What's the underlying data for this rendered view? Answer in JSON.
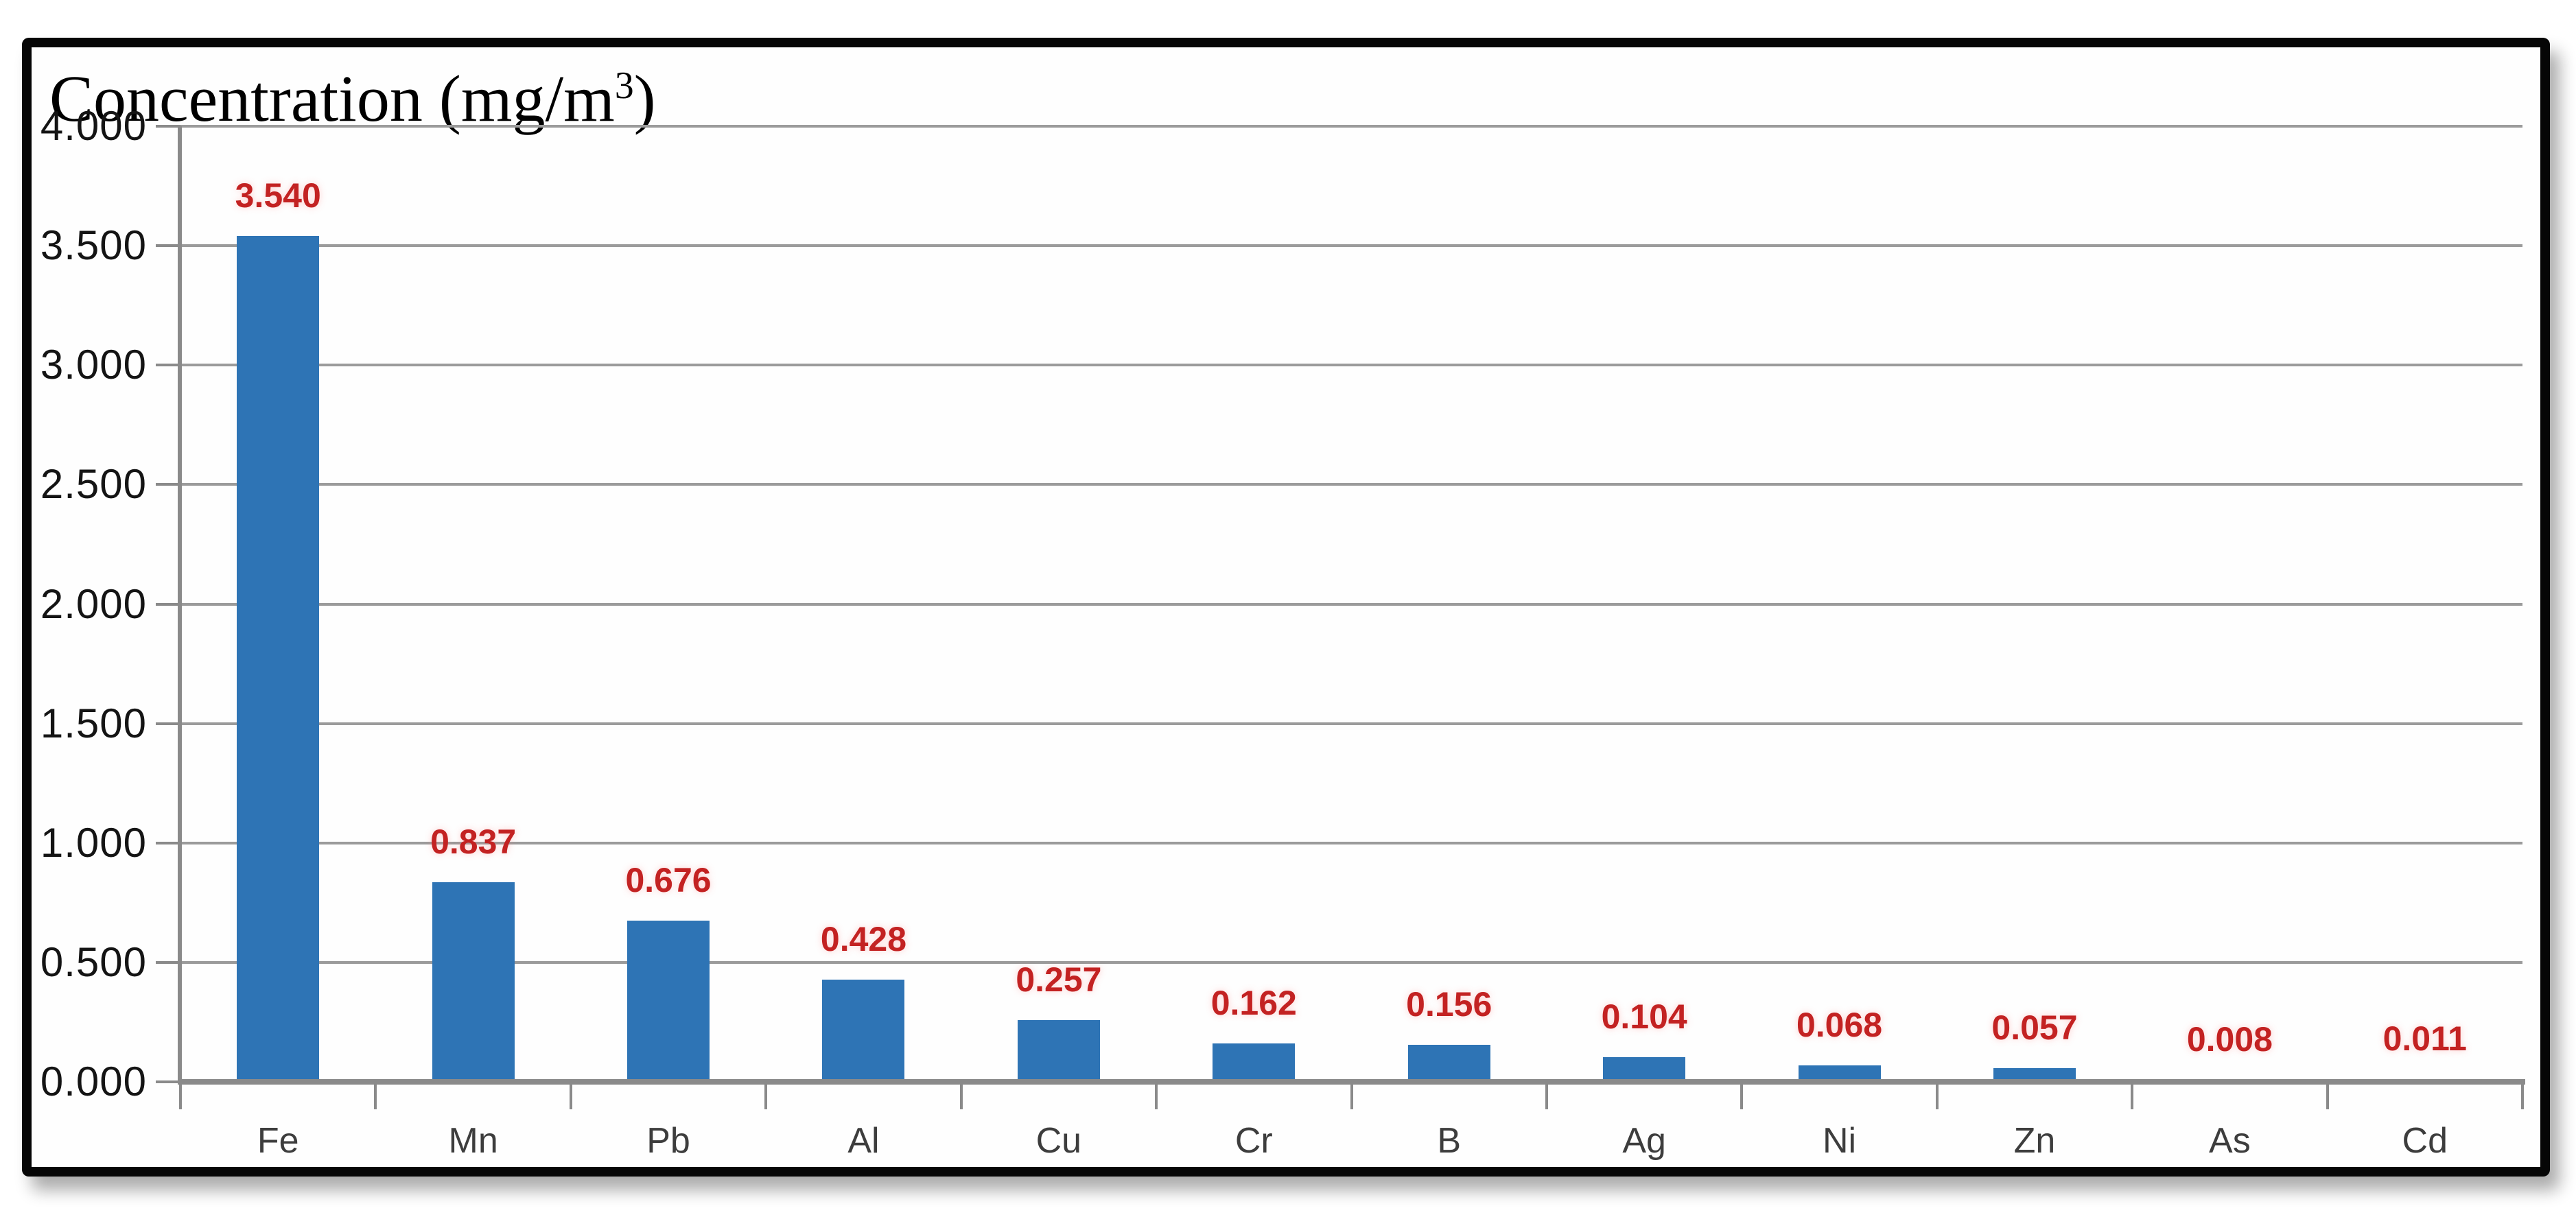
{
  "title": {
    "prefix": "Concentration (mg/m",
    "superscript": "3",
    "suffix": ")"
  },
  "chart_data": {
    "type": "bar",
    "title": "Concentration (mg/m^3)",
    "categories": [
      "Fe",
      "Mn",
      "Pb",
      "Al",
      "Cu",
      "Cr",
      "B",
      "Ag",
      "Ni",
      "Zn",
      "As",
      "Cd"
    ],
    "values": [
      3.54,
      0.837,
      0.676,
      0.428,
      0.257,
      0.162,
      0.156,
      0.104,
      0.068,
      0.057,
      0.008,
      0.011
    ],
    "value_labels": [
      "3.540",
      "0.837",
      "0.676",
      "0.428",
      "0.257",
      "0.162",
      "0.156",
      "0.104",
      "0.068",
      "0.057",
      "0.008",
      "0.011"
    ],
    "xlabel": "",
    "ylabel": "",
    "ylim": [
      0,
      4
    ],
    "ytick_step": 0.5,
    "yticks": [
      {
        "value": 4.0,
        "label": "4.000"
      },
      {
        "value": 3.5,
        "label": "3.500"
      },
      {
        "value": 3.0,
        "label": "3.000"
      },
      {
        "value": 2.5,
        "label": "2.500"
      },
      {
        "value": 2.0,
        "label": "2.000"
      },
      {
        "value": 1.5,
        "label": "1.500"
      },
      {
        "value": 1.0,
        "label": "1.000"
      },
      {
        "value": 0.5,
        "label": "0.500"
      },
      {
        "value": 0.0,
        "label": "0.000"
      }
    ],
    "grid": true,
    "legend": false,
    "colors": {
      "bar": "#2e74b5",
      "value_label": "#c32222",
      "gridline": "#9b9b9b",
      "axis": "#8a8a8a",
      "x_label_text": "#3d3d3d",
      "y_label_text": "#141414",
      "frame_border": "#060606"
    }
  }
}
